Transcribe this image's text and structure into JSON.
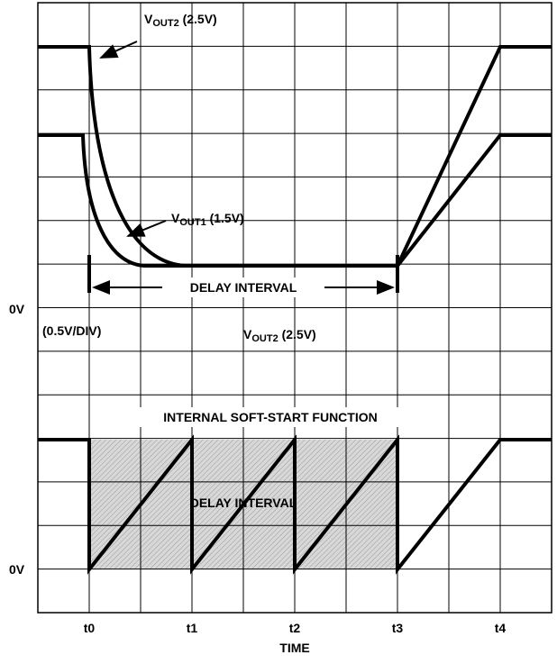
{
  "labels": {
    "vout2_top": {
      "v": "V",
      "sub": "OUT2",
      "rest": " (2.5V)"
    },
    "vout1": {
      "v": "V",
      "sub": "OUT1",
      "rest": " (1.5V)"
    },
    "delay_top": "DELAY INTERVAL",
    "zero_top": "0V",
    "scale": "(0.5V/DIV)",
    "vout2_mid": {
      "v": "V",
      "sub": "OUT2",
      "rest": " (2.5V)"
    },
    "soft_start": "INTERNAL SOFT-START FUNCTION",
    "delay_bottom": "DELAY INTERVAL",
    "zero_bottom": "0V"
  },
  "time_ticks": [
    "t0",
    "t1",
    "t2",
    "t3",
    "t4"
  ],
  "x_axis_label": "TIME"
}
